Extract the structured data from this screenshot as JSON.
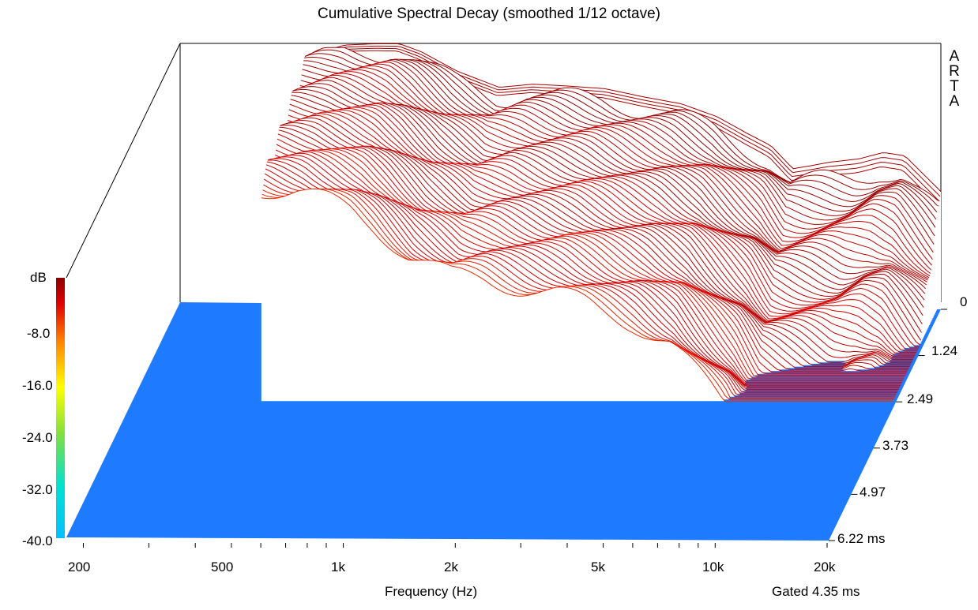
{
  "watermark": [
    "A",
    "R",
    "T",
    "A"
  ],
  "chart_data": {
    "type": "waterfall",
    "title": "Cumulative Spectral Decay (smoothed 1/12 octave)",
    "xlabel": "Frequency (Hz)",
    "x_scale": "log",
    "xlim": [
      180,
      20000
    ],
    "x_ticks": [
      "200",
      "500",
      "1k",
      "2k",
      "5k",
      "10k",
      "20k"
    ],
    "colorbar_label": "dB",
    "db_ticks": [
      "-8.0",
      "-16.0",
      "-24.0",
      "-32.0",
      "-40.0"
    ],
    "zlim": [
      -40,
      0
    ],
    "time_ticks": [
      "0",
      "1.24",
      "2.49",
      "3.73",
      "4.97",
      "6.22 ms"
    ],
    "tlim_ms": [
      0,
      6.22
    ],
    "gate_label": "Gated 4.35 ms",
    "colors": {
      "floor": "#1e7bff",
      "frame": "#000000",
      "color_scale": [
        "#00c0ff",
        "#00e0d0",
        "#80e040",
        "#ffff00",
        "#ff8000",
        "#e00000",
        "#8b0000"
      ]
    },
    "initial_response": {
      "freq_hz": [
        400,
        500,
        600,
        700,
        800,
        1000,
        1300,
        1600,
        2000,
        2500,
        3200,
        4000,
        5000,
        6000,
        7000,
        8000,
        9000,
        10000,
        12000,
        14000,
        16000,
        20000
      ],
      "db": [
        -2,
        -0.5,
        -0.3,
        -0.3,
        -1.5,
        -4.5,
        -7,
        -6.5,
        -6.8,
        -7.2,
        -8.5,
        -9.5,
        -11.5,
        -14,
        -16,
        -19.5,
        -19,
        -18.5,
        -18,
        -17,
        -17.5,
        -23
      ]
    },
    "decay_rate": {
      "freq_hz": [
        400,
        700,
        1000,
        1500,
        2000,
        3000,
        5000,
        8000,
        12000,
        20000
      ],
      "db_per_ms": [
        2,
        4,
        5,
        5.5,
        6,
        6.5,
        7.5,
        10,
        13,
        14
      ]
    },
    "slice_count": 70
  }
}
